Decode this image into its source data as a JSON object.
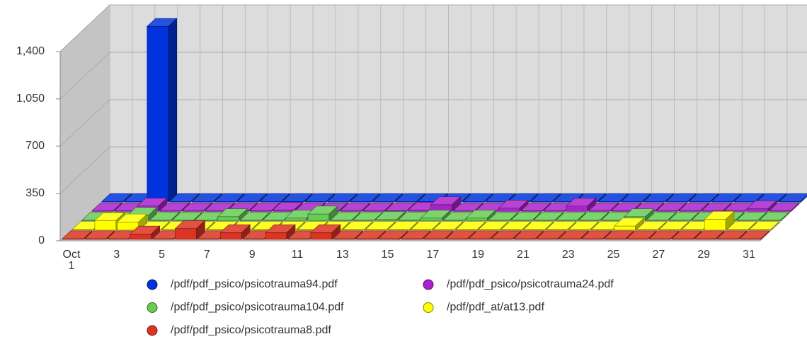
{
  "chart_data": {
    "type": "bar3d",
    "categories": [
      "Oct 1",
      null,
      "3",
      null,
      "5",
      null,
      "7",
      null,
      "9",
      null,
      "11",
      null,
      "13",
      null,
      "15",
      null,
      "17",
      null,
      "19",
      null,
      "21",
      null,
      "23",
      null,
      "25",
      null,
      "27",
      null,
      "29",
      null,
      "31"
    ],
    "series": [
      {
        "name": "/pdf/pdf_psico/psicotrauma94.pdf",
        "color": "#0033dd",
        "values": [
          5,
          5,
          1300,
          5,
          5,
          5,
          5,
          5,
          5,
          5,
          5,
          5,
          5,
          5,
          5,
          5,
          5,
          5,
          5,
          5,
          5,
          5,
          5,
          5,
          5,
          5,
          5,
          5,
          5,
          5,
          5
        ]
      },
      {
        "name": "/pdf/pdf_psico/psicotrauma24.pdf",
        "color": "#aa22cc",
        "values": [
          5,
          5,
          40,
          5,
          5,
          5,
          5,
          5,
          10,
          5,
          5,
          5,
          5,
          5,
          10,
          50,
          5,
          5,
          25,
          5,
          5,
          40,
          5,
          5,
          5,
          5,
          5,
          5,
          5,
          20,
          5
        ]
      },
      {
        "name": "/pdf/pdf_psico/psicotrauma104.pdf",
        "color": "#66cc55",
        "values": [
          5,
          5,
          40,
          5,
          5,
          5,
          30,
          5,
          5,
          20,
          50,
          5,
          5,
          10,
          5,
          20,
          5,
          20,
          5,
          5,
          5,
          5,
          5,
          5,
          30,
          5,
          5,
          5,
          5,
          5,
          5
        ]
      },
      {
        "name": "/pdf/pdf_at/at13.pdf",
        "color": "#ffff00",
        "values": [
          5,
          70,
          60,
          5,
          5,
          5,
          5,
          5,
          5,
          5,
          5,
          5,
          5,
          5,
          5,
          5,
          5,
          5,
          5,
          5,
          5,
          5,
          5,
          5,
          30,
          5,
          5,
          5,
          80,
          5,
          5
        ]
      },
      {
        "name": "/pdf/pdf_psico/psicotrauma8.pdf",
        "color": "#dd3322",
        "values": [
          5,
          5,
          5,
          40,
          5,
          80,
          5,
          50,
          5,
          50,
          5,
          50,
          5,
          5,
          5,
          5,
          5,
          5,
          5,
          5,
          5,
          5,
          5,
          5,
          5,
          5,
          5,
          5,
          5,
          5,
          5
        ]
      }
    ],
    "ylim": [
      0,
      1400
    ],
    "yticks": [
      0,
      350,
      700,
      {
        "value": 1050,
        "label": "1,050"
      },
      {
        "value": 1400,
        "label": "1,400"
      }
    ],
    "grid": true
  }
}
